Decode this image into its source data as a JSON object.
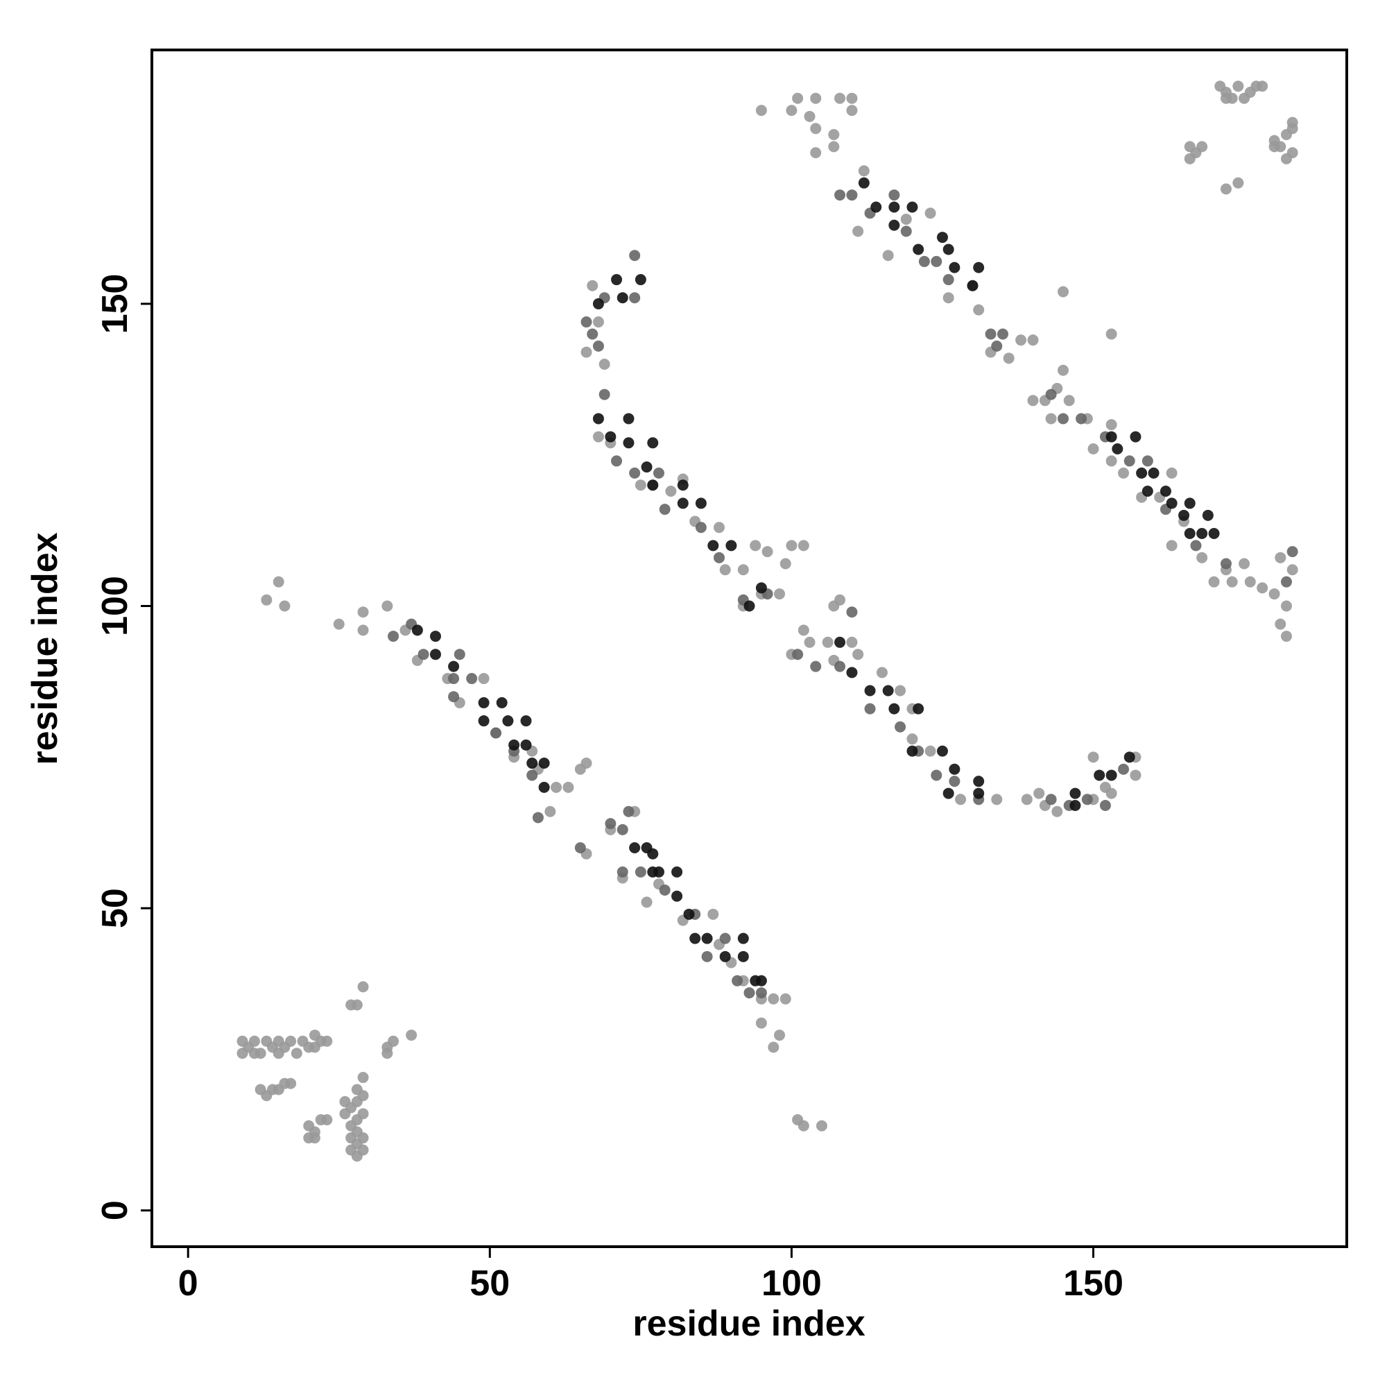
{
  "chart_data": {
    "type": "scatter",
    "x_label": "residue index",
    "y_label": "residue index",
    "xlim": [
      -6,
      192
    ],
    "ylim": [
      -6,
      192
    ],
    "xticks": [
      0,
      50,
      100,
      150
    ],
    "yticks": [
      0,
      50,
      100,
      150
    ],
    "series": [
      {
        "color": "#999999",
        "x": [
          25,
          29,
          29,
          33,
          36,
          38,
          43,
          45,
          49,
          51,
          54,
          57,
          60,
          58,
          61,
          63,
          65,
          66,
          66,
          70,
          74,
          72,
          76,
          78,
          82,
          87,
          88,
          90,
          92,
          95,
          97,
          99,
          95,
          98,
          97,
          67,
          68,
          66,
          69,
          68,
          70,
          75,
          77,
          80,
          82,
          84,
          88,
          89,
          92,
          94,
          96,
          92,
          95,
          98,
          99,
          100,
          102,
          102,
          100,
          103,
          106,
          107,
          107,
          108,
          110,
          111,
          115,
          118,
          120,
          120,
          123,
          128,
          134,
          139,
          141,
          142,
          144,
          150,
          152,
          153,
          150,
          157,
          157,
          95,
          100,
          101,
          103,
          104,
          104,
          104,
          107,
          107,
          108,
          110,
          110,
          112,
          111,
          116,
          119,
          123,
          126,
          130,
          131,
          133,
          136,
          138,
          140,
          140,
          142,
          143,
          144,
          145,
          146,
          149,
          150,
          153,
          153,
          155,
          158,
          161,
          163,
          163,
          165,
          168,
          170,
          172,
          173,
          175,
          176,
          178,
          180,
          182,
          181,
          182,
          183,
          181,
          9,
          9,
          10,
          11,
          11,
          12,
          13,
          14,
          15,
          15,
          16,
          17,
          18,
          19,
          20,
          21,
          21,
          22,
          23,
          12,
          13,
          14,
          15,
          16,
          17,
          20,
          20,
          21,
          21,
          22,
          23,
          26,
          26,
          27,
          27,
          27,
          27,
          28,
          28,
          28,
          28,
          28,
          28,
          29,
          29,
          29,
          29,
          29,
          27,
          28,
          29,
          33,
          33,
          34,
          37,
          13,
          15,
          16,
          171,
          172,
          173,
          174,
          175,
          176,
          177,
          178,
          172,
          166,
          166,
          167,
          168,
          172,
          174,
          180,
          181,
          182,
          183,
          183,
          182,
          180,
          183,
          101,
          102,
          105,
          145,
          153
        ],
        "values": [
          97,
          99,
          96,
          100,
          96,
          91,
          88,
          84,
          88,
          79,
          75,
          76,
          66,
          73,
          70,
          70,
          73,
          74,
          59,
          63,
          66,
          55,
          51,
          54,
          48,
          49,
          44,
          41,
          38,
          35,
          35,
          35,
          31,
          29,
          27,
          153,
          147,
          142,
          140,
          128,
          127,
          120,
          120,
          119,
          121,
          114,
          113,
          106,
          106,
          110,
          109,
          100,
          102,
          102,
          107,
          110,
          110,
          96,
          92,
          94,
          94,
          91,
          100,
          101,
          94,
          92,
          89,
          86,
          83,
          78,
          76,
          68,
          68,
          68,
          69,
          67,
          66,
          68,
          70,
          69,
          75,
          75,
          72,
          182,
          182,
          184,
          181,
          184,
          175,
          179,
          178,
          176,
          184,
          182,
          184,
          172,
          162,
          158,
          164,
          165,
          151,
          153,
          149,
          142,
          141,
          144,
          144,
          134,
          134,
          131,
          136,
          139,
          134,
          131,
          126,
          130,
          124,
          122,
          118,
          118,
          110,
          122,
          114,
          108,
          104,
          106,
          104,
          107,
          104,
          103,
          102,
          100,
          97,
          95,
          106,
          108,
          26,
          28,
          27,
          26,
          28,
          26,
          28,
          27,
          26,
          28,
          27,
          28,
          26,
          28,
          27,
          27,
          29,
          28,
          28,
          20,
          19,
          20,
          20,
          21,
          21,
          14,
          12,
          12,
          13,
          15,
          15,
          16,
          18,
          10,
          12,
          14,
          17,
          9,
          11,
          13,
          15,
          18,
          20,
          10,
          12,
          16,
          19,
          22,
          34,
          34,
          37,
          26,
          27,
          28,
          29,
          101,
          104,
          100,
          186,
          185,
          184,
          186,
          184,
          185,
          186,
          186,
          184,
          176,
          174,
          175,
          176,
          169,
          170,
          177,
          176,
          178,
          179,
          175,
          174,
          176,
          180,
          15,
          14,
          14,
          152,
          145
        ]
      },
      {
        "color": "#666666",
        "x": [
          34,
          37,
          39,
          44,
          44,
          45,
          47,
          51,
          54,
          57,
          58,
          65,
          70,
          72,
          73,
          72,
          75,
          79,
          84,
          86,
          89,
          91,
          93,
          95,
          66,
          67,
          68,
          69,
          74,
          74,
          69,
          71,
          74,
          78,
          79,
          85,
          88,
          92,
          96,
          101,
          104,
          108,
          110,
          113,
          118,
          121,
          124,
          127,
          131,
          143,
          146,
          149,
          152,
          155,
          108,
          110,
          113,
          117,
          119,
          122,
          124,
          126,
          133,
          134,
          135,
          143,
          145,
          148,
          152,
          156,
          159,
          162,
          167,
          172,
          182,
          183
        ],
        "values": [
          95,
          97,
          92,
          88,
          85,
          92,
          88,
          79,
          76,
          72,
          65,
          60,
          64,
          63,
          66,
          56,
          56,
          53,
          49,
          42,
          45,
          38,
          36,
          36,
          147,
          145,
          143,
          151,
          151,
          158,
          135,
          124,
          122,
          122,
          116,
          113,
          108,
          101,
          102,
          92,
          90,
          90,
          99,
          83,
          80,
          76,
          72,
          71,
          68,
          68,
          67,
          68,
          67,
          73,
          168,
          168,
          165,
          168,
          162,
          157,
          157,
          154,
          145,
          143,
          145,
          135,
          131,
          131,
          128,
          124,
          124,
          116,
          110,
          107,
          104,
          109
        ]
      },
      {
        "color": "#111111",
        "x": [
          38,
          41,
          41,
          44,
          49,
          49,
          52,
          53,
          56,
          56,
          54,
          59,
          59,
          57,
          74,
          76,
          77,
          77,
          78,
          81,
          81,
          83,
          84,
          86,
          89,
          92,
          94,
          95,
          92,
          68,
          71,
          75,
          72,
          68,
          73,
          70,
          73,
          76,
          77,
          77,
          82,
          82,
          85,
          87,
          90,
          95,
          93,
          108,
          110,
          113,
          117,
          116,
          121,
          120,
          125,
          127,
          126,
          131,
          131,
          147,
          147,
          151,
          153,
          156,
          112,
          114,
          117,
          117,
          120,
          121,
          126,
          125,
          127,
          131,
          130,
          153,
          154,
          157,
          158,
          160,
          159,
          162,
          163,
          165,
          166,
          168,
          169,
          170,
          166
        ],
        "values": [
          96,
          95,
          92,
          90,
          84,
          81,
          84,
          81,
          81,
          77,
          77,
          74,
          70,
          74,
          60,
          60,
          56,
          59,
          56,
          56,
          52,
          49,
          45,
          45,
          42,
          42,
          38,
          38,
          45,
          150,
          154,
          154,
          151,
          131,
          131,
          128,
          127,
          123,
          120,
          127,
          120,
          117,
          117,
          110,
          110,
          103,
          100,
          94,
          89,
          86,
          83,
          86,
          83,
          76,
          76,
          73,
          69,
          71,
          69,
          67,
          69,
          72,
          72,
          75,
          170,
          166,
          166,
          163,
          166,
          159,
          159,
          161,
          156,
          156,
          153,
          128,
          126,
          128,
          122,
          122,
          119,
          119,
          117,
          115,
          117,
          112,
          115,
          112,
          112
        ]
      }
    ]
  }
}
